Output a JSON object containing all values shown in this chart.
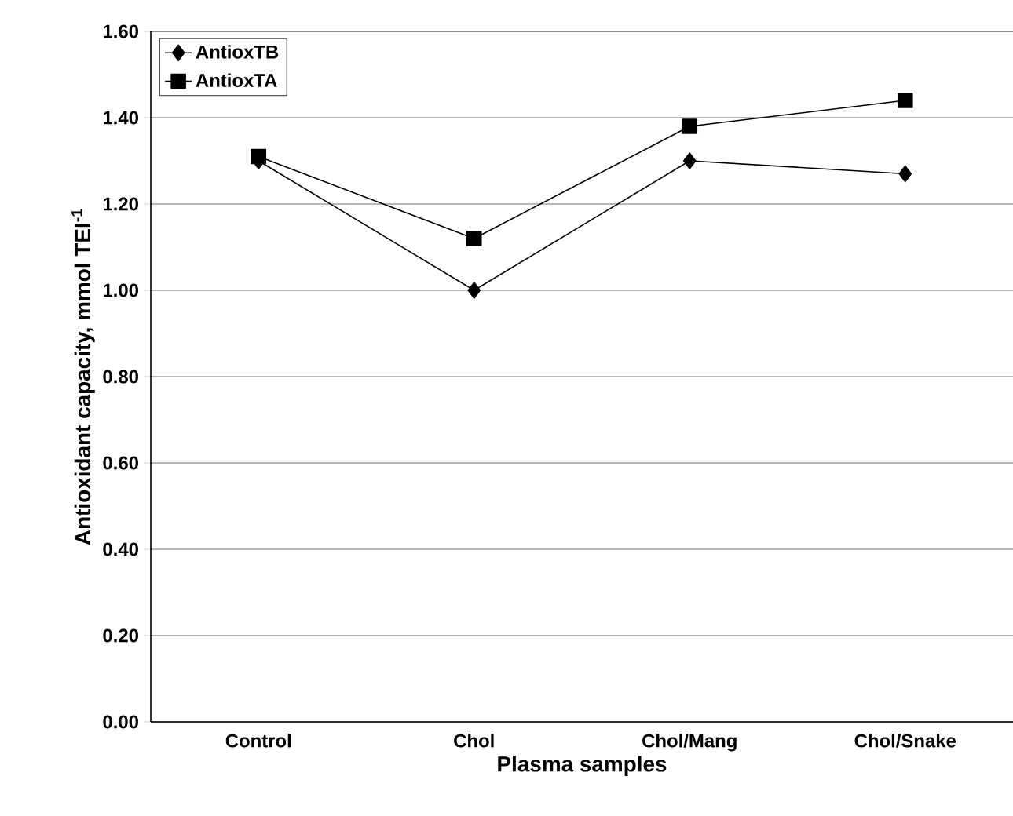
{
  "chart_data": {
    "type": "line",
    "xlabel": "Plasma samples",
    "ylabel": "Antioxidant capacity, mmol TEI$^{-1}$",
    "categories": [
      "Control",
      "Chol",
      "Chol/Mang",
      "Chol/Snake"
    ],
    "series": [
      {
        "name": "AntioxTB",
        "color": "#000000",
        "marker": "diamond",
        "values": [
          1.3,
          1.0,
          1.3,
          1.27
        ]
      },
      {
        "name": "AntioxTA",
        "color": "#000000",
        "marker": "square",
        "values": [
          1.31,
          1.12,
          1.38,
          1.44
        ]
      }
    ],
    "ylim": [
      0,
      1.6
    ],
    "yticks": [
      {
        "value": 0,
        "label": "0.00"
      },
      {
        "value": 0.2,
        "label": "0.20"
      },
      {
        "value": 0.4,
        "label": "0.40"
      },
      {
        "value": 0.6,
        "label": "0.60"
      },
      {
        "value": 0.8,
        "label": "0.80"
      },
      {
        "value": 1.0,
        "label": "1.00"
      },
      {
        "value": 1.2,
        "label": "1.20"
      },
      {
        "value": 1.4,
        "label": "1.40"
      },
      {
        "value": 1.6,
        "label": "1.60"
      }
    ],
    "grid": "y",
    "legend": "top left",
    "line_style": "solid"
  }
}
